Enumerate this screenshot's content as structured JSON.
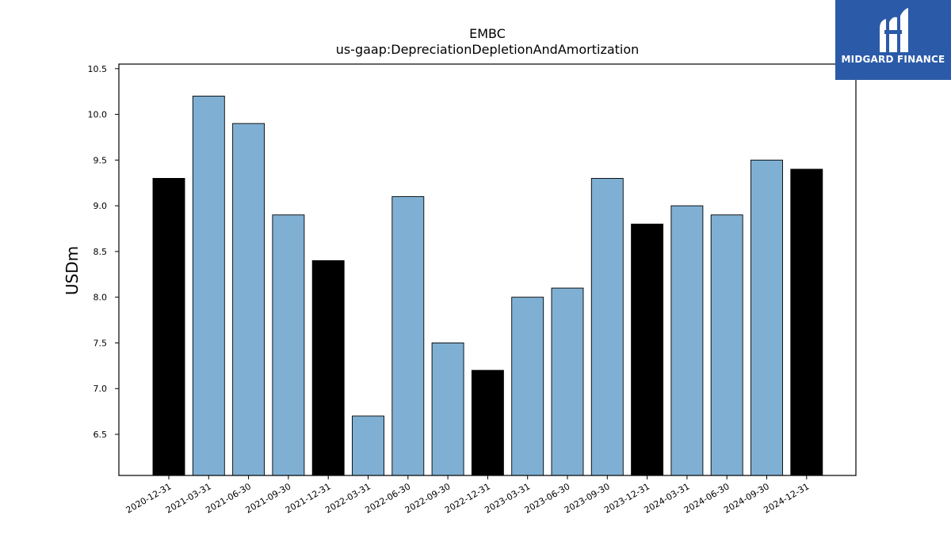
{
  "chart_data": {
    "type": "bar",
    "title": "EMBC",
    "subtitle": "us-gaap:DepreciationDepletionAndAmortization",
    "ylabel": "USDm",
    "xlabel": "",
    "categories": [
      "2020-12-31",
      "2021-03-31",
      "2021-06-30",
      "2021-09-30",
      "2021-12-31",
      "2022-03-31",
      "2022-06-30",
      "2022-09-30",
      "2022-12-31",
      "2023-03-31",
      "2023-06-30",
      "2023-09-30",
      "2023-12-31",
      "2024-03-31",
      "2024-06-30",
      "2024-09-30",
      "2024-12-31"
    ],
    "values": [
      9.3,
      10.2,
      9.9,
      8.9,
      8.4,
      6.7,
      9.1,
      7.5,
      7.2,
      8.0,
      8.1,
      9.3,
      8.8,
      9.0,
      8.9,
      9.5,
      9.4
    ],
    "highlight": [
      true,
      false,
      false,
      false,
      true,
      false,
      false,
      false,
      true,
      false,
      false,
      false,
      true,
      false,
      false,
      false,
      true
    ],
    "ylim": [
      6.05,
      10.55
    ],
    "yticks": [
      "6.5",
      "7.0",
      "7.5",
      "8.0",
      "8.5",
      "9.0",
      "9.5",
      "10.0",
      "10.5"
    ],
    "colors": {
      "quarter": "#7fb0d4",
      "year_end": "#000000"
    }
  },
  "logo": {
    "text": "MIDGARD FINANCE",
    "background": "#2b5aa8"
  }
}
